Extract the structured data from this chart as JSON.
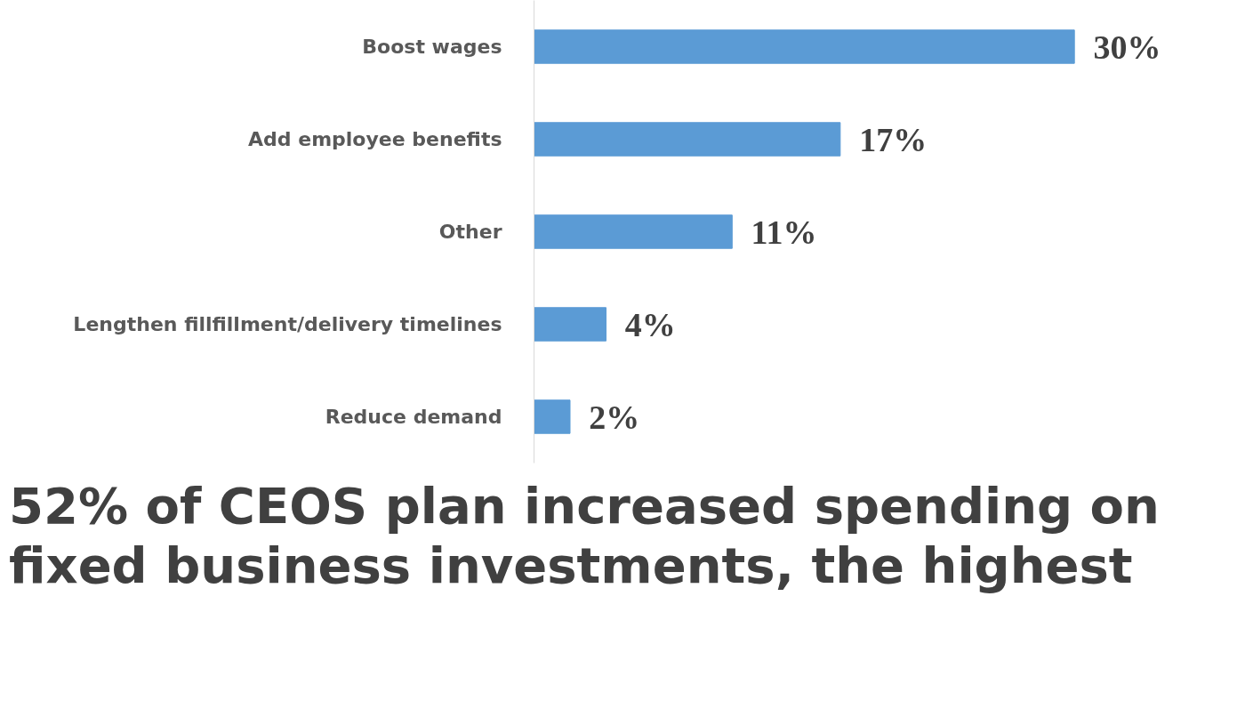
{
  "chart_data": {
    "type": "bar",
    "orientation": "horizontal",
    "categories": [
      "Boost wages",
      "Add employee benefits",
      "Other",
      "Lengthen fillfillment/delivery timelines",
      "Reduce demand"
    ],
    "values": [
      30,
      17,
      11,
      4,
      2
    ],
    "color": "#5b9bd5",
    "data_labels": true,
    "grid": false,
    "tick_labels": "y",
    "value_labels": [
      "30%",
      "17%",
      "11%",
      "4%",
      "2%"
    ],
    "annotations": [
      "52% of CEOS plan increased spending on fixed business investments, the highest"
    ]
  }
}
